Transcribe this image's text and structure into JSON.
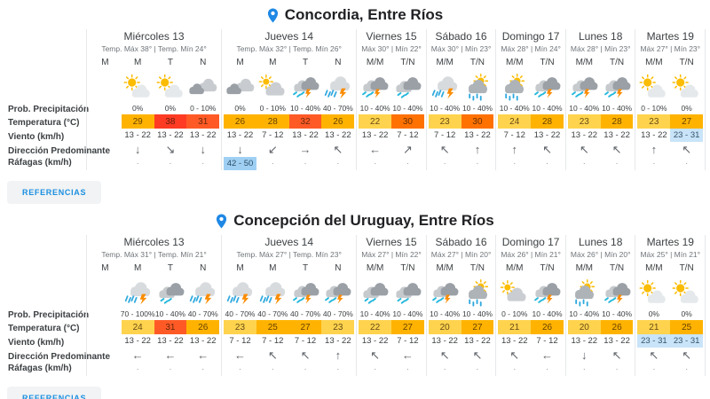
{
  "references_label": "REFERENCIAS",
  "row_labels": [
    "Prob. Precipitación",
    "Temperatura (°C)",
    "Viento (km/h)",
    "Dirección Predominante",
    "Ráfagas (km/h)"
  ],
  "colors": {
    "accent_blue": "#1A8FE0",
    "pin_blue": "#1E88E5",
    "wind_highlight": "#C9E4F8",
    "gust_highlight": "#9FD0F4",
    "temp_scale": {
      "20_24": "#FFD34D",
      "25_29": "#FFB300",
      "30": "#FF7100",
      "31_32": "#FF5A26",
      "35_plus": "#FF3B24"
    }
  },
  "sections": [
    {
      "city": "Concordia, Entre Ríos",
      "days": [
        {
          "name": "Miércoles 13",
          "range": "Temp. Máx 38° | Temp. Mín 24°",
          "periods": [
            "M",
            "M",
            "T",
            "N"
          ],
          "cells": [
            {},
            {
              "icon": "mostly-sunny",
              "prob": "0%",
              "temp": "29",
              "tc": "#FFB300",
              "wind": "13 - 22",
              "dir": "↓",
              "gust": "·"
            },
            {
              "icon": "mostly-sunny",
              "prob": "0%",
              "temp": "38",
              "tc": "#FF3B24",
              "wind": "13 - 22",
              "dir": "↘",
              "gust": "·"
            },
            {
              "icon": "cloudy",
              "prob": "0 - 10%",
              "temp": "31",
              "tc": "#FF5A26",
              "wind": "13 - 22",
              "dir": "↓",
              "gust": "·"
            }
          ]
        },
        {
          "name": "Jueves 14",
          "range": "Temp. Máx 32° | Temp. Mín 26°",
          "periods": [
            "M",
            "M",
            "T",
            "N"
          ],
          "cells": [
            {
              "icon": "cloudy",
              "prob": "0%",
              "temp": "26",
              "tc": "#FFB300",
              "wind": "13 - 22",
              "dir": "↓",
              "gust": "42 - 50",
              "ghi": true
            },
            {
              "icon": "partly-cloudy",
              "prob": "0 - 10%",
              "temp": "28",
              "tc": "#FFB300",
              "wind": "7 - 12",
              "dir": "↙",
              "gust": "·"
            },
            {
              "icon": "storm",
              "prob": "10 - 40%",
              "temp": "32",
              "tc": "#FF5A26",
              "wind": "13 - 22",
              "dir": "→",
              "gust": "·"
            },
            {
              "icon": "storm-heavy",
              "prob": "40 - 70%",
              "temp": "26",
              "tc": "#FFB300",
              "wind": "13 - 22",
              "dir": "↖",
              "gust": "·"
            }
          ]
        },
        {
          "name": "Viernes 15",
          "range": "Máx 30° | Mín 22°",
          "periods": [
            "M/M",
            "T/N"
          ],
          "cells": [
            {
              "icon": "storm",
              "prob": "10 - 40%",
              "temp": "22",
              "tc": "#FFD34D",
              "wind": "13 - 22",
              "dir": "←",
              "gust": "·"
            },
            {
              "icon": "rain",
              "prob": "10 - 40%",
              "temp": "30",
              "tc": "#FF7100",
              "wind": "7 - 12",
              "dir": "↗",
              "gust": "·"
            }
          ]
        },
        {
          "name": "Sábado 16",
          "range": "Máx 30° | Mín 23°",
          "periods": [
            "M/M",
            "T/N"
          ],
          "cells": [
            {
              "icon": "storm-heavy",
              "prob": "10 - 40%",
              "temp": "23",
              "tc": "#FFD34D",
              "wind": "7 - 12",
              "dir": "↖",
              "gust": "·"
            },
            {
              "icon": "sun-rain",
              "prob": "10 - 40%",
              "temp": "30",
              "tc": "#FF7100",
              "wind": "13 - 22",
              "dir": "↑",
              "gust": "·"
            }
          ]
        },
        {
          "name": "Domingo 17",
          "range": "Máx 28° | Mín 24°",
          "periods": [
            "M/M",
            "T/N"
          ],
          "cells": [
            {
              "icon": "sun-rain",
              "prob": "10 - 40%",
              "temp": "24",
              "tc": "#FFD34D",
              "wind": "7 - 12",
              "dir": "↑",
              "gust": "·"
            },
            {
              "icon": "storm",
              "prob": "10 - 40%",
              "temp": "28",
              "tc": "#FFB300",
              "wind": "13 - 22",
              "dir": "↖",
              "gust": "·"
            }
          ]
        },
        {
          "name": "Lunes 18",
          "range": "Máx 28° | Mín 23°",
          "periods": [
            "M/M",
            "T/N"
          ],
          "cells": [
            {
              "icon": "storm",
              "prob": "10 - 40%",
              "temp": "23",
              "tc": "#FFD34D",
              "wind": "13 - 22",
              "dir": "↖",
              "gust": "·"
            },
            {
              "icon": "storm",
              "prob": "10 - 40%",
              "temp": "28",
              "tc": "#FFB300",
              "wind": "13 - 22",
              "dir": "↖",
              "gust": "·"
            }
          ]
        },
        {
          "name": "Martes 19",
          "range": "Máx 27° | Mín 23°",
          "periods": [
            "M/M",
            "T/N"
          ],
          "cells": [
            {
              "icon": "mostly-sunny",
              "prob": "0 - 10%",
              "temp": "23",
              "tc": "#FFD34D",
              "wind": "13 - 22",
              "dir": "↑",
              "gust": "·"
            },
            {
              "icon": "mostly-sunny",
              "prob": "0%",
              "temp": "27",
              "tc": "#FFB300",
              "wind": "23 - 31",
              "whi": true,
              "dir": "↖",
              "gust": "·"
            }
          ]
        }
      ]
    },
    {
      "city": "Concepción del Uruguay, Entre Ríos",
      "days": [
        {
          "name": "Miércoles 13",
          "range": "Temp. Máx 31° | Temp. Mín 21°",
          "periods": [
            "M",
            "M",
            "T",
            "N"
          ],
          "cells": [
            {},
            {
              "icon": "storm-heavy",
              "prob": "70 - 100%",
              "temp": "24",
              "tc": "#FFD34D",
              "wind": "13 - 22",
              "dir": "←",
              "gust": "·"
            },
            {
              "icon": "rain",
              "prob": "10 - 40%",
              "temp": "31",
              "tc": "#FF5A26",
              "wind": "13 - 22",
              "dir": "←",
              "gust": "·"
            },
            {
              "icon": "storm-heavy",
              "prob": "40 - 70%",
              "temp": "26",
              "tc": "#FFB300",
              "wind": "13 - 22",
              "dir": "←",
              "gust": "·"
            }
          ]
        },
        {
          "name": "Jueves 14",
          "range": "Temp. Máx 27° | Temp. Mín 23°",
          "periods": [
            "M",
            "M",
            "T",
            "N"
          ],
          "cells": [
            {
              "icon": "storm-heavy",
              "prob": "40 - 70%",
              "temp": "23",
              "tc": "#FFD34D",
              "wind": "7 - 12",
              "dir": "←",
              "gust": "·"
            },
            {
              "icon": "storm-heavy",
              "prob": "40 - 70%",
              "temp": "25",
              "tc": "#FFB300",
              "wind": "7 - 12",
              "dir": "↖",
              "gust": "·"
            },
            {
              "icon": "storm",
              "prob": "40 - 70%",
              "temp": "27",
              "tc": "#FFB300",
              "wind": "7 - 12",
              "dir": "↖",
              "gust": "·"
            },
            {
              "icon": "storm",
              "prob": "40 - 70%",
              "temp": "23",
              "tc": "#FFD34D",
              "wind": "13 - 22",
              "dir": "↑",
              "gust": "·"
            }
          ]
        },
        {
          "name": "Viernes 15",
          "range": "Máx 27° | Mín 22°",
          "periods": [
            "M/M",
            "T/N"
          ],
          "cells": [
            {
              "icon": "rain",
              "prob": "10 - 40%",
              "temp": "22",
              "tc": "#FFD34D",
              "wind": "13 - 22",
              "dir": "↖",
              "gust": "·"
            },
            {
              "icon": "rain",
              "prob": "10 - 40%",
              "temp": "27",
              "tc": "#FFB300",
              "wind": "7 - 12",
              "dir": "←",
              "gust": "·"
            }
          ]
        },
        {
          "name": "Sábado 16",
          "range": "Máx 27° | Mín 20°",
          "periods": [
            "M/M",
            "T/N"
          ],
          "cells": [
            {
              "icon": "storm",
              "prob": "10 - 40%",
              "temp": "20",
              "tc": "#FFD34D",
              "wind": "13 - 22",
              "dir": "↖",
              "gust": "·"
            },
            {
              "icon": "sun-rain",
              "prob": "10 - 40%",
              "temp": "27",
              "tc": "#FFB300",
              "wind": "13 - 22",
              "dir": "↖",
              "gust": "·"
            }
          ]
        },
        {
          "name": "Domingo 17",
          "range": "Máx 26° | Mín 21°",
          "periods": [
            "M/M",
            "T/N"
          ],
          "cells": [
            {
              "icon": "partly-cloudy",
              "prob": "0 - 10%",
              "temp": "21",
              "tc": "#FFD34D",
              "wind": "13 - 22",
              "dir": "↖",
              "gust": "·"
            },
            {
              "icon": "storm",
              "prob": "10 - 40%",
              "temp": "26",
              "tc": "#FFB300",
              "wind": "7 - 12",
              "dir": "←",
              "gust": "·"
            }
          ]
        },
        {
          "name": "Lunes 18",
          "range": "Máx 26° | Mín 20°",
          "periods": [
            "M/M",
            "T/N"
          ],
          "cells": [
            {
              "icon": "sun-rain",
              "prob": "10 - 40%",
              "temp": "20",
              "tc": "#FFD34D",
              "wind": "13 - 22",
              "dir": "↓",
              "gust": "·"
            },
            {
              "icon": "storm",
              "prob": "10 - 40%",
              "temp": "26",
              "tc": "#FFB300",
              "wind": "13 - 22",
              "dir": "↖",
              "gust": "·"
            }
          ]
        },
        {
          "name": "Martes 19",
          "range": "Máx 25° | Mín 21°",
          "periods": [
            "M/M",
            "T/N"
          ],
          "cells": [
            {
              "icon": "mostly-sunny",
              "prob": "0%",
              "temp": "21",
              "tc": "#FFD34D",
              "wind": "23 - 31",
              "whi": true,
              "dir": "↖",
              "gust": "·"
            },
            {
              "icon": "mostly-sunny",
              "prob": "0%",
              "temp": "25",
              "tc": "#FFB300",
              "wind": "23 - 31",
              "whi": true,
              "dir": "↖",
              "gust": "·"
            }
          ]
        }
      ]
    }
  ]
}
